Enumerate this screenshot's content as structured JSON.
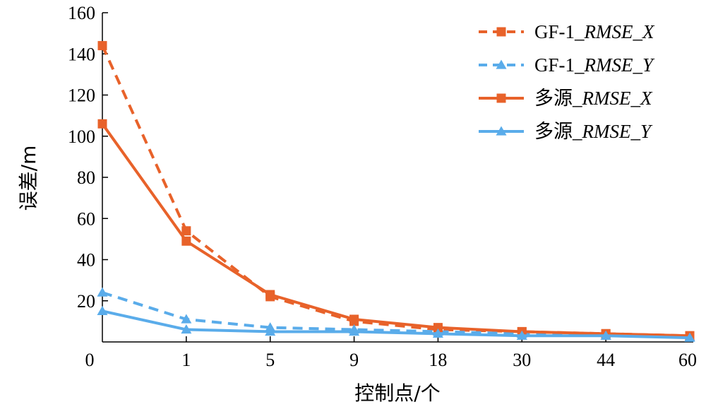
{
  "chart_data": {
    "type": "line",
    "xlabel": "控制点/个",
    "ylabel": "误差/m",
    "categories": [
      "0",
      "1",
      "5",
      "9",
      "18",
      "30",
      "44",
      "60"
    ],
    "ylim": [
      0,
      160
    ],
    "yticks": [
      "160",
      "140",
      "120",
      "100",
      "80",
      "60",
      "40",
      "20"
    ],
    "grid": false,
    "legend_position": "top-right",
    "series": [
      {
        "name_prefix": "GF-1_",
        "name_italic": "RMSE_X",
        "color": "#E8622A",
        "style": "dashed",
        "marker": "square",
        "values": [
          144,
          54,
          22,
          10,
          6,
          5,
          4,
          3
        ]
      },
      {
        "name_prefix": "GF-1_",
        "name_italic": "RMSE_Y",
        "color": "#5AACEA",
        "style": "dashed",
        "marker": "triangle",
        "values": [
          24,
          11,
          7,
          6,
          5,
          4,
          3,
          2.5
        ]
      },
      {
        "name_prefix": "多源_",
        "name_italic": "RMSE_X",
        "color": "#E8622A",
        "style": "solid",
        "marker": "square",
        "values": [
          106,
          49,
          23,
          11,
          7,
          5,
          4,
          3
        ]
      },
      {
        "name_prefix": "多源_",
        "name_italic": "RMSE_Y",
        "color": "#5AACEA",
        "style": "solid",
        "marker": "triangle",
        "values": [
          15,
          6,
          5,
          5,
          4,
          3,
          3,
          2
        ]
      }
    ]
  }
}
